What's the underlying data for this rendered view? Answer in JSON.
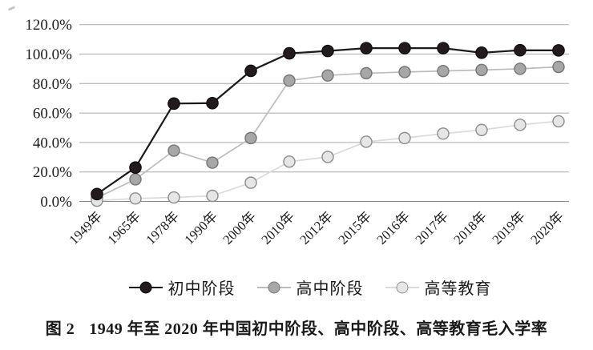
{
  "page": {
    "background": "#ffffff"
  },
  "chart_data": {
    "type": "line",
    "title": "",
    "xlabel": "",
    "ylabel": "",
    "ylim": [
      0,
      120
    ],
    "grid": true,
    "legend_position": "bottom",
    "y_ticks": [
      "0.0%",
      "20.0%",
      "40.0%",
      "60.0%",
      "80.0%",
      "100.0%",
      "120.0%"
    ],
    "categories": [
      "1949年",
      "1965年",
      "1978年",
      "1990年",
      "2000年",
      "2010年",
      "2012年",
      "2015年",
      "2016年",
      "2017年",
      "2018年",
      "2019年",
      "2020年"
    ],
    "series": [
      {
        "name": "初中阶段",
        "values": [
          5.0,
          23.0,
          66.4,
          66.7,
          88.6,
          100.5,
          102.1,
          104.0,
          104.0,
          104.0,
          100.9,
          102.6,
          102.5
        ],
        "line_color": "#1b1b1b",
        "marker_fill": "#221a1d",
        "marker_stroke": "#0d0d0d"
      },
      {
        "name": "高中阶段",
        "values": [
          2.5,
          15.0,
          34.5,
          26.3,
          43.0,
          82.0,
          85.5,
          87.0,
          87.8,
          88.5,
          89.2,
          90.0,
          91.3
        ],
        "line_color": "#bcbcbc",
        "marker_fill": "#a7a7a7",
        "marker_stroke": "#757575"
      },
      {
        "name": "高等教育",
        "values": [
          0.5,
          2.0,
          2.7,
          3.8,
          12.7,
          27.0,
          30.2,
          40.5,
          43.0,
          46.0,
          48.5,
          52.0,
          54.4
        ],
        "line_color": "#dadada",
        "marker_fill": "#e6e6e6",
        "marker_stroke": "#8c8c8c"
      }
    ],
    "gridline_color": "#ababab",
    "axis_line_color": "#8a8a8a",
    "tick_text_color": "#1c1c1c"
  },
  "caption": {
    "label": "图 2",
    "text": "1949 年至 2020 年中国初中阶段、高中阶段、高等教育毛入学率"
  }
}
